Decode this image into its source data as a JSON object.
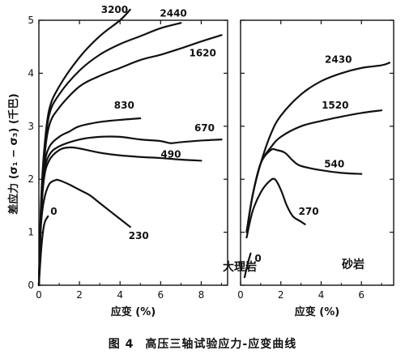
{
  "caption": {
    "number": "图 4",
    "text": "高压三轴试验应力-应变曲线"
  },
  "ylabel": "差应力 (σ₁ − σ₃) (千巴)",
  "chart_data": [
    {
      "type": "line",
      "panel_label": "大理岩",
      "xlabel": "应变 (%)",
      "xlim": [
        0,
        9.3
      ],
      "ylim": [
        0,
        5
      ],
      "xticks": [
        0,
        2,
        4,
        6,
        8
      ],
      "yticks": [
        0,
        1,
        2,
        3,
        4,
        5
      ],
      "series": [
        {
          "name": "3200",
          "x": [
            0,
            0.1,
            0.25,
            0.5,
            1.0,
            2.0,
            3.0,
            4.0,
            4.5
          ],
          "y": [
            0,
            1.5,
            2.5,
            3.3,
            3.75,
            4.3,
            4.7,
            5.0,
            5.2
          ]
        },
        {
          "name": "2440",
          "x": [
            0,
            0.1,
            0.25,
            0.5,
            1.0,
            2.0,
            3.0,
            4.0,
            5.0,
            6.0,
            7.0
          ],
          "y": [
            0,
            1.4,
            2.4,
            3.2,
            3.6,
            4.05,
            4.35,
            4.55,
            4.7,
            4.85,
            4.95
          ]
        },
        {
          "name": "1620",
          "x": [
            0,
            0.1,
            0.25,
            0.5,
            1.0,
            2.0,
            3.0,
            4.0,
            5.0,
            6.0,
            7.0,
            8.0,
            9.0
          ],
          "y": [
            0,
            1.3,
            2.3,
            3.0,
            3.35,
            3.75,
            3.95,
            4.1,
            4.25,
            4.35,
            4.47,
            4.6,
            4.72
          ]
        },
        {
          "name": "830",
          "x": [
            0,
            0.1,
            0.25,
            0.5,
            1.0,
            1.5,
            2.0,
            3.0,
            4.0,
            5.0
          ],
          "y": [
            0,
            1.3,
            2.2,
            2.6,
            2.8,
            2.9,
            3.0,
            3.08,
            3.12,
            3.15
          ]
        },
        {
          "name": "670",
          "x": [
            0,
            0.1,
            0.25,
            0.5,
            1.0,
            2.0,
            3.0,
            4.0,
            5.0,
            6.0,
            6.5,
            7.0,
            8.0,
            9.0
          ],
          "y": [
            0,
            1.3,
            2.1,
            2.45,
            2.62,
            2.75,
            2.8,
            2.8,
            2.75,
            2.72,
            2.68,
            2.7,
            2.73,
            2.75
          ]
        },
        {
          "name": "490",
          "x": [
            0,
            0.1,
            0.25,
            0.5,
            1.0,
            1.5,
            2.0,
            3.0,
            4.0,
            5.0,
            6.0,
            7.0,
            8.0
          ],
          "y": [
            0,
            1.2,
            2.0,
            2.35,
            2.55,
            2.6,
            2.58,
            2.5,
            2.45,
            2.42,
            2.4,
            2.37,
            2.35
          ]
        },
        {
          "name": "230",
          "x": [
            0,
            0.1,
            0.25,
            0.5,
            0.8,
            1.0,
            1.5,
            2.0,
            2.5,
            3.0,
            3.5,
            4.0,
            4.5
          ],
          "y": [
            0,
            1.1,
            1.6,
            1.9,
            1.98,
            1.98,
            1.9,
            1.8,
            1.7,
            1.55,
            1.4,
            1.25,
            1.1
          ]
        },
        {
          "name": "0",
          "x": [
            0,
            0.1,
            0.2,
            0.3,
            0.45
          ],
          "y": [
            0,
            0.6,
            1.0,
            1.2,
            1.3
          ]
        }
      ]
    },
    {
      "type": "line",
      "panel_label": "砂岩",
      "xlabel": "应变 (%)",
      "xlim": [
        0,
        7.6
      ],
      "ylim": [
        0,
        5
      ],
      "xticks": [
        0,
        2,
        4,
        6
      ],
      "yticks": [
        0,
        1,
        2,
        3,
        4,
        5
      ],
      "series": [
        {
          "name": "2430",
          "x": [
            0.3,
            0.6,
            1.0,
            1.5,
            2.0,
            3.0,
            4.0,
            5.0,
            6.0,
            7.0,
            7.4
          ],
          "y": [
            1.0,
            1.7,
            2.3,
            2.85,
            3.2,
            3.6,
            3.85,
            4.0,
            4.1,
            4.15,
            4.2
          ]
        },
        {
          "name": "1520",
          "x": [
            0.3,
            0.6,
            1.0,
            1.5,
            2.0,
            3.0,
            4.0,
            5.0,
            6.0,
            7.0
          ],
          "y": [
            1.0,
            1.7,
            2.3,
            2.6,
            2.8,
            3.0,
            3.1,
            3.18,
            3.25,
            3.3
          ]
        },
        {
          "name": "540",
          "x": [
            0.3,
            0.6,
            1.0,
            1.5,
            1.8,
            2.2,
            2.6,
            3.0,
            4.0,
            5.0,
            6.0
          ],
          "y": [
            1.0,
            1.7,
            2.3,
            2.55,
            2.55,
            2.5,
            2.35,
            2.25,
            2.17,
            2.12,
            2.1
          ]
        },
        {
          "name": "270",
          "x": [
            0.3,
            0.6,
            1.0,
            1.4,
            1.7,
            2.0,
            2.3,
            2.6,
            3.0,
            3.2
          ],
          "y": [
            0.9,
            1.4,
            1.75,
            1.95,
            2.0,
            1.8,
            1.5,
            1.3,
            1.2,
            1.15
          ]
        },
        {
          "name": "0",
          "x": [
            0.2,
            0.35,
            0.5
          ],
          "y": [
            0.15,
            0.4,
            0.6
          ]
        }
      ]
    }
  ]
}
